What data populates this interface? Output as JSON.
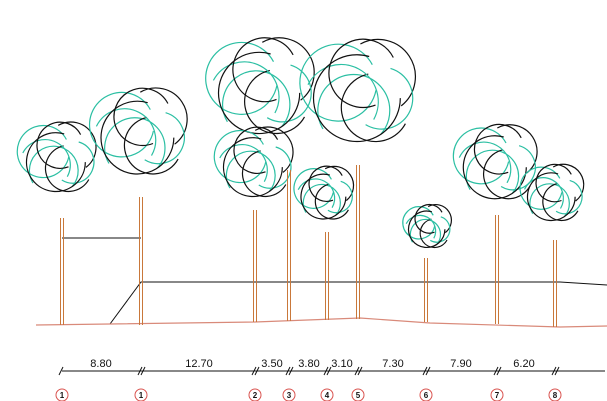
{
  "colors": {
    "canopy_teal": "#2bbfa3",
    "canopy_black": "#111111",
    "trunk": "#c9783a",
    "ground": "#d98a7a",
    "marker_circle": "#d9534f",
    "line": "#111111"
  },
  "spacings": [
    {
      "label": "8.80"
    },
    {
      "label": "12.70"
    },
    {
      "label": "3.50"
    },
    {
      "label": "3.80"
    },
    {
      "label": "3.10"
    },
    {
      "label": "7.30"
    },
    {
      "label": "7.90"
    },
    {
      "label": "6.20"
    }
  ],
  "markers": [
    {
      "label": "1"
    },
    {
      "label": "1"
    },
    {
      "label": "2"
    },
    {
      "label": "3"
    },
    {
      "label": "4"
    },
    {
      "label": "5"
    },
    {
      "label": "6"
    },
    {
      "label": "7"
    },
    {
      "label": "8"
    }
  ]
}
